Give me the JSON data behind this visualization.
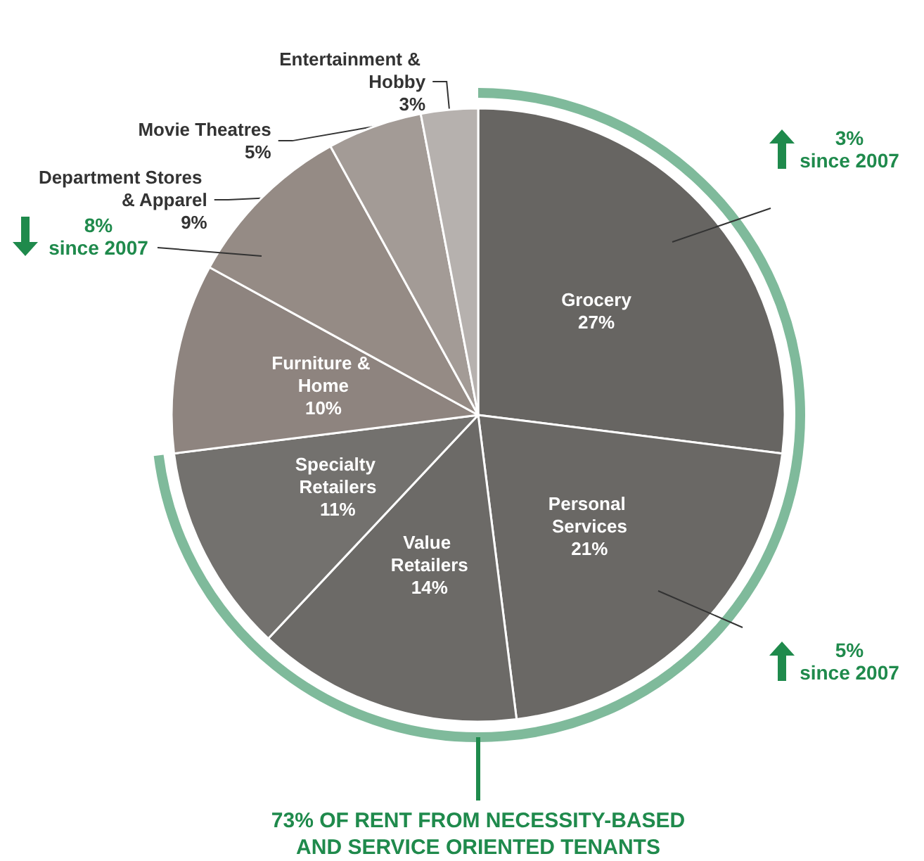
{
  "chart_data": {
    "type": "pie",
    "categories": [
      "Grocery",
      "Personal Services",
      "Value Retailers",
      "Specialty Retailers",
      "Furniture & Home",
      "Department Stores & Apparel",
      "Movie Theatres",
      "Entertainment & Hobby"
    ],
    "values": [
      27,
      21,
      14,
      11,
      10,
      9,
      5,
      3
    ],
    "colors": [
      "#676562",
      "#6a6865",
      "#6c6a67",
      "#73716e",
      "#8e847f",
      "#958b85",
      "#a39b96",
      "#b6b1ae"
    ],
    "value_labels": [
      "27%",
      "21%",
      "14%",
      "11%",
      "10%",
      "9%",
      "5%",
      "3%"
    ],
    "legend": false,
    "annotations": [
      "3%\nsince 2007",
      "8%\nsince 2007",
      "5%\nsince 2007",
      "73% OF RENT FROM NECESSITY-BASED AND SERVICE ORIENTED TENANTS"
    ]
  }
}
